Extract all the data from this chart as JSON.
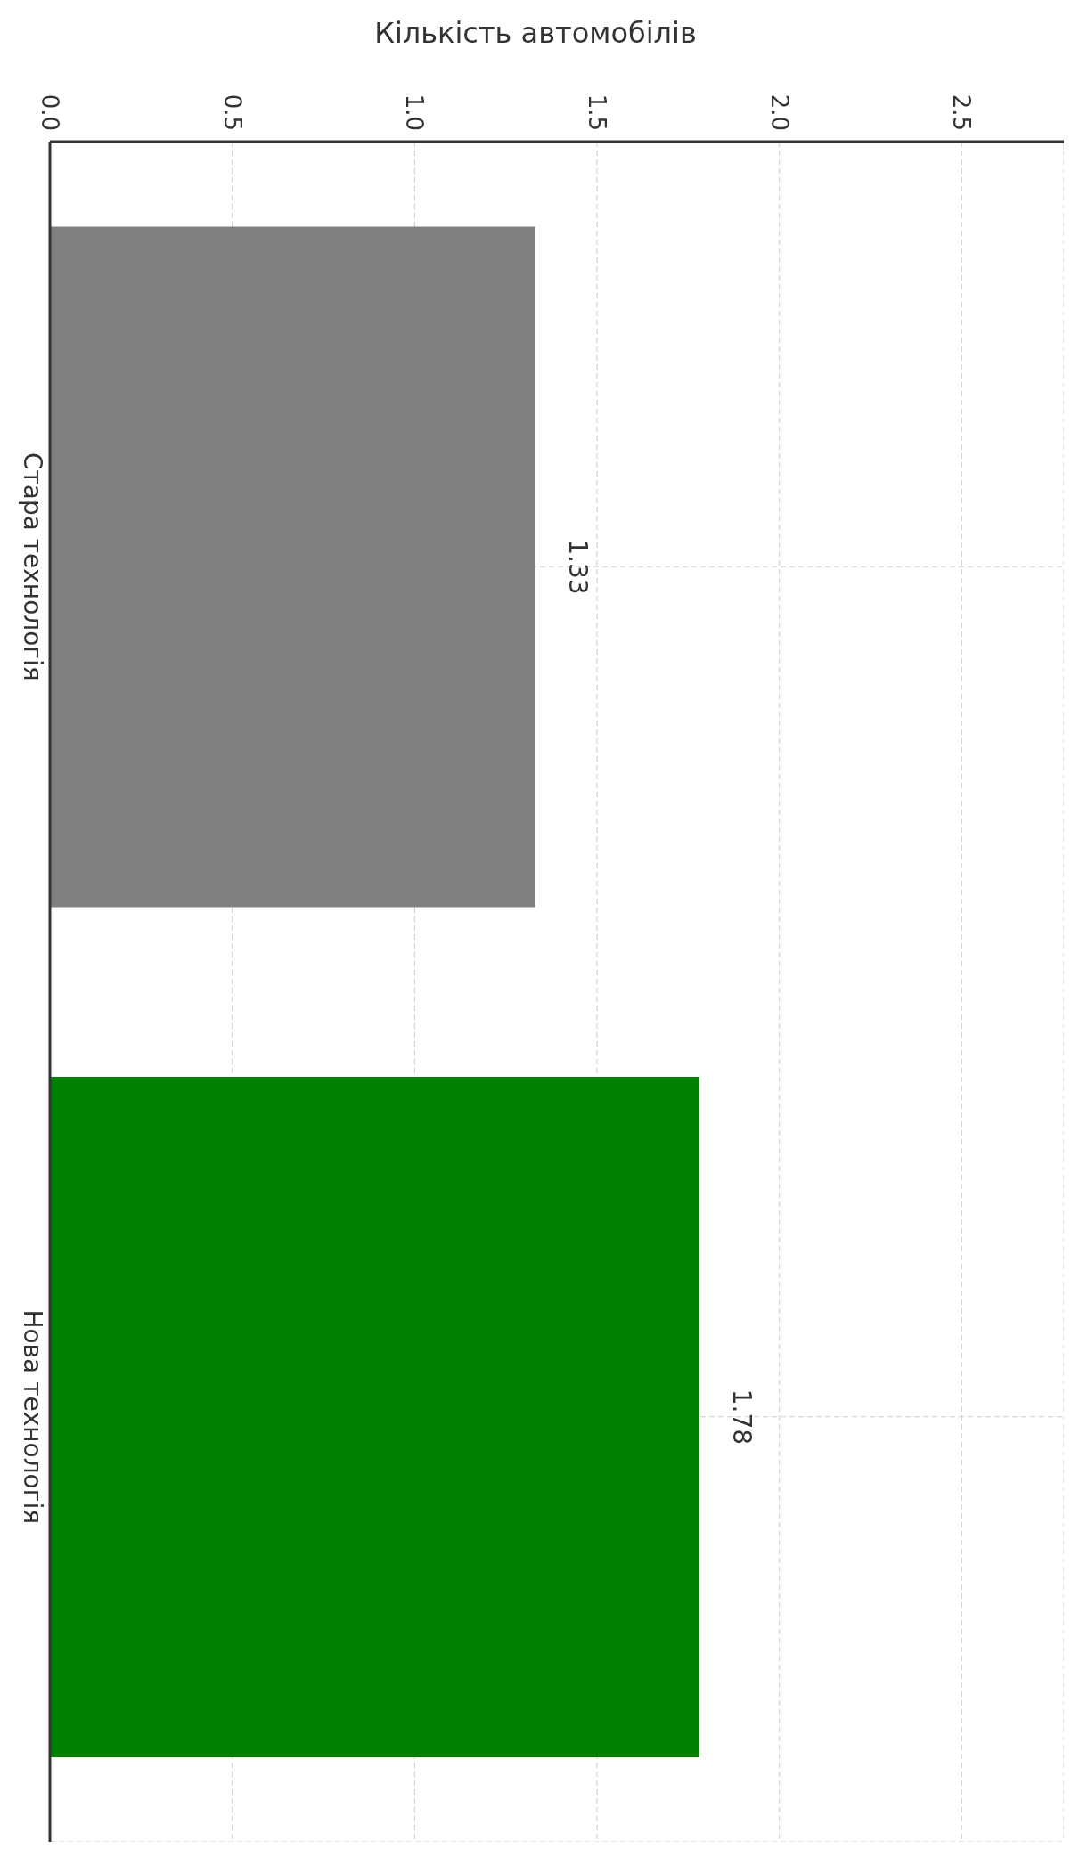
{
  "chart_data": {
    "type": "bar",
    "orientation": "horizontal",
    "xlabel": "Кількість автомобілів",
    "categories": [
      "Стара технологія",
      "Нова технологія"
    ],
    "values": [
      1.33,
      1.78
    ],
    "colors": [
      "#808080",
      "#008000"
    ],
    "xlim": [
      0,
      2.78
    ],
    "xticks": [
      {
        "value": 0,
        "label": "0.0"
      },
      0.5,
      {
        "value": 1,
        "label": "1.0"
      },
      1.5,
      {
        "value": 2,
        "label": "2.0"
      },
      2.5
    ],
    "data_labels": true,
    "grid": true
  }
}
